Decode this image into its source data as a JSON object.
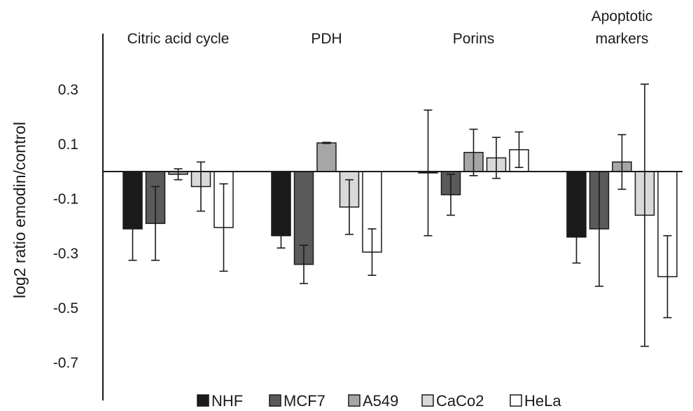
{
  "chart_data": {
    "type": "bar",
    "title": "",
    "xlabel": "",
    "ylabel": "log2 ratio emodin/control",
    "ylim": [
      -0.8,
      0.35
    ],
    "yticks": [
      0.3,
      0.1,
      -0.1,
      -0.3,
      -0.5,
      -0.7
    ],
    "ytick_labels": [
      "0.3",
      "0.1",
      "-0.1",
      "-0.3",
      "-0.5",
      "-0.7"
    ],
    "grid": false,
    "legend_position": "bottom",
    "categories": [
      "Citric acid cycle",
      "PDH",
      "Porins",
      "Apoptotic markers"
    ],
    "category_label_lines": [
      [
        "Citric acid cycle"
      ],
      [
        "PDH"
      ],
      [
        "Porins"
      ],
      [
        "Apoptotic",
        "markers"
      ]
    ],
    "series": [
      {
        "name": "NHF",
        "color": "#1a1a1a",
        "values": [
          -0.21,
          -0.235,
          -0.005,
          -0.24
        ],
        "errors": [
          0.115,
          0.045,
          0.23,
          0.095
        ]
      },
      {
        "name": "MCF7",
        "color": "#5a5a5a",
        "values": [
          -0.19,
          -0.34,
          -0.085,
          -0.21
        ],
        "errors": [
          0.135,
          0.07,
          0.075,
          0.21
        ]
      },
      {
        "name": "A549",
        "color": "#a6a6a6",
        "values": [
          -0.01,
          0.105,
          0.07,
          0.035
        ],
        "errors": [
          0.02,
          0.002,
          0.085,
          0.1
        ]
      },
      {
        "name": "CaCo2",
        "color": "#d9d9d9",
        "values": [
          -0.055,
          -0.13,
          0.05,
          -0.16
        ],
        "errors": [
          0.09,
          0.1,
          0.075,
          0.48
        ]
      },
      {
        "name": "HeLa",
        "color": "#ffffff",
        "values": [
          -0.205,
          -0.295,
          0.08,
          -0.385
        ],
        "errors": [
          0.16,
          0.085,
          0.065,
          0.15
        ]
      }
    ]
  }
}
